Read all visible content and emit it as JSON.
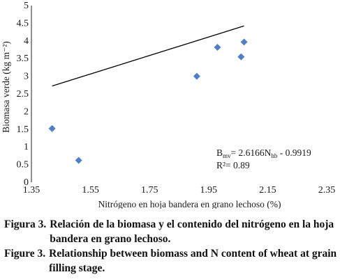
{
  "chart_data": {
    "type": "scatter",
    "title": "",
    "xlabel": "Nitrógeno en hoja bandera en grano lechoso (%)",
    "ylabel": "Biomasa verde (kg m⁻²)",
    "xlim": [
      1.35,
      2.35
    ],
    "ylim": [
      0,
      5
    ],
    "x_ticks": [
      "1.35",
      "1.55",
      "1.75",
      "1.95",
      "2.15",
      "2.35"
    ],
    "y_ticks": [
      "0",
      "0.5",
      "1",
      "1.5",
      "2",
      "2.5",
      "3",
      "3.5",
      "4",
      "4.5",
      "5"
    ],
    "grid": false,
    "legend": "none",
    "marker_color": "#4f7fc4",
    "line_color": "#000000",
    "points": [
      {
        "x": 1.42,
        "y": 1.52
      },
      {
        "x": 1.51,
        "y": 0.62
      },
      {
        "x": 1.91,
        "y": 3.0
      },
      {
        "x": 1.98,
        "y": 3.82
      },
      {
        "x": 2.06,
        "y": 3.55
      },
      {
        "x": 2.07,
        "y": 3.97
      }
    ],
    "trendline": {
      "x_start": 1.42,
      "x_end": 2.07,
      "slope": 2.6166,
      "intercept": -0.9919
    },
    "equation": {
      "lhs": "B",
      "lhs_sub": "mv",
      "rhs_a": "= 2.6166N",
      "rhs_sub": "hb",
      "rhs_b": " - 0.9919",
      "r2": "R²= 0.89"
    }
  },
  "caption": {
    "es_label": "Figura 3.",
    "es_text": "Relación de la biomasa y el contenido del nitrógeno en la hoja bandera en grano lechoso.",
    "en_label": "Figure 3.",
    "en_text": "Relationship between biomass and N content of wheat at grain filling stage."
  }
}
